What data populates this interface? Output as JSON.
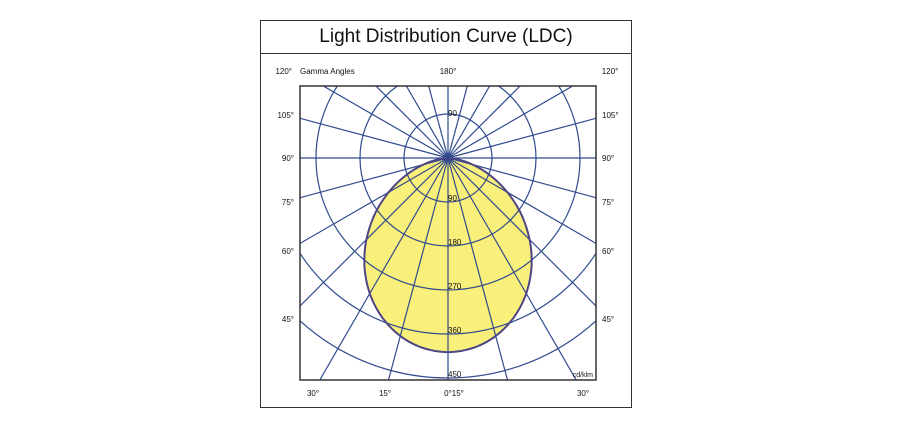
{
  "chart_data": {
    "type": "polar",
    "title": "Light Distribution Curve (LDC)",
    "angle_label": "Gamma Angles",
    "unit": "cd/klm",
    "radial_ticks": [
      90,
      180,
      270,
      360,
      450
    ],
    "radial_max": 450,
    "spoke_step_deg": 15,
    "angle_labels": {
      "top": [
        "120°",
        "180°",
        "120°"
      ],
      "left": [
        "105°",
        "90°",
        "75°",
        "60°",
        "45°"
      ],
      "right": [
        "105°",
        "90°",
        "75°",
        "60°",
        "45°"
      ],
      "bottom": [
        "30°",
        "15°",
        "0°15°",
        "30°"
      ]
    },
    "series": [
      {
        "gamma": [
          0,
          15,
          30,
          45,
          60,
          75,
          90
        ],
        "values": [
          397,
          377,
          320,
          236,
          140,
          52,
          0
        ]
      }
    ],
    "colors": {
      "grid": "#2f4a8e",
      "fill": "#f8f07a",
      "curve": "#4f4485",
      "frame": "#333333"
    }
  }
}
